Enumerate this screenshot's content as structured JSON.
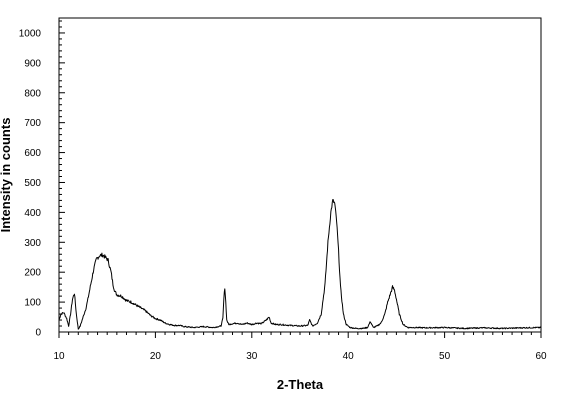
{
  "chart_data": {
    "type": "line",
    "xlabel": "2-Theta",
    "ylabel": "Intensity in counts",
    "xlim": [
      10,
      60
    ],
    "ylim": [
      0,
      1050
    ],
    "x_ticks": [
      10,
      20,
      30,
      40,
      50,
      60
    ],
    "y_ticks": [
      0,
      100,
      200,
      300,
      400,
      500,
      600,
      700,
      800,
      900,
      1000
    ],
    "grid": false,
    "legend": "none",
    "line_color": "#000000",
    "series": [
      {
        "x": [
          10.0,
          10.2,
          10.5,
          10.8,
          11.0,
          11.2,
          11.4,
          11.6,
          11.8,
          12.0,
          12.2,
          12.5,
          12.8,
          13.0,
          13.3,
          13.6,
          13.9,
          14.2,
          14.5,
          14.8,
          15.1,
          15.4,
          15.6,
          15.8,
          16.0,
          16.5,
          17.0,
          17.5,
          18.0,
          18.5,
          19.0,
          19.5,
          20.0,
          20.5,
          21.0,
          21.5,
          22.0,
          22.5,
          23.0,
          24.0,
          25.0,
          26.0,
          26.8,
          27.0,
          27.1,
          27.2,
          27.3,
          27.4,
          27.6,
          28.0,
          28.5,
          29.0,
          29.5,
          30.0,
          30.5,
          31.0,
          31.5,
          31.8,
          32.0,
          32.5,
          33.0,
          34.0,
          35.0,
          35.8,
          36.0,
          36.3,
          36.8,
          37.2,
          37.6,
          37.9,
          38.2,
          38.4,
          38.6,
          38.8,
          39.0,
          39.2,
          39.5,
          39.8,
          40.2,
          40.8,
          41.5,
          42.0,
          42.3,
          42.6,
          43.0,
          43.4,
          43.8,
          44.1,
          44.4,
          44.6,
          44.8,
          45.0,
          45.3,
          45.7,
          46.2,
          47.0,
          48.0,
          50.0,
          52.0,
          54.0,
          56.0,
          58.0,
          60.0
        ],
        "y": [
          40,
          60,
          65,
          45,
          20,
          60,
          110,
          130,
          60,
          10,
          20,
          50,
          80,
          110,
          160,
          210,
          245,
          255,
          258,
          250,
          240,
          200,
          160,
          135,
          125,
          120,
          105,
          100,
          90,
          80,
          70,
          55,
          45,
          40,
          30,
          25,
          22,
          22,
          18,
          15,
          18,
          15,
          20,
          45,
          110,
          150,
          100,
          40,
          25,
          28,
          30,
          25,
          30,
          25,
          30,
          28,
          40,
          50,
          30,
          25,
          25,
          22,
          20,
          22,
          40,
          20,
          30,
          60,
          160,
          300,
          400,
          440,
          430,
          370,
          270,
          150,
          60,
          25,
          15,
          12,
          12,
          15,
          35,
          15,
          20,
          30,
          60,
          100,
          130,
          150,
          140,
          110,
          60,
          25,
          15,
          15,
          14,
          15,
          12,
          14,
          12,
          14,
          15
        ]
      }
    ]
  }
}
